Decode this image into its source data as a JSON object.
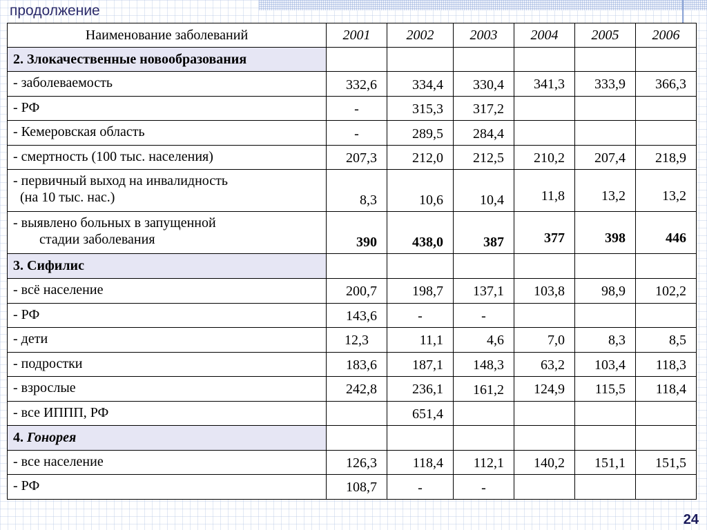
{
  "subtitle": "продолжение",
  "page_number": "24",
  "table": {
    "header": {
      "name": "Наименование заболеваний",
      "years": [
        "2001",
        "2002",
        "2003",
        "2004",
        "2005",
        "2006"
      ]
    },
    "sections": {
      "malignant": {
        "title": "2. Злокачественные новообразования",
        "rows": {
          "incidence": {
            "label": "- заболеваемость",
            "values": [
              "332,6",
              "334,4",
              "330,4",
              "341,3",
              "333,9",
              "366,3"
            ]
          },
          "rf": {
            "label": "- РФ",
            "values": [
              "-",
              "315,3",
              "317,2",
              "",
              "",
              ""
            ]
          },
          "kemerovo": {
            "label": "- Кемеровская область",
            "values": [
              "-",
              "289,5",
              "284,4",
              "",
              "",
              ""
            ]
          },
          "mortality": {
            "label": "- смертность (100 тыс. населения)",
            "values": [
              "207,3",
              "212,0",
              "212,5",
              "210,2",
              "207,4",
              "218,9"
            ]
          },
          "disability": {
            "label_line1": "- первичный выход на инвалидность",
            "label_line2": "(на 10 тыс. нас.)",
            "values": [
              "8,3",
              "10,6",
              "10,4",
              "11,8",
              "13,2",
              "13,2"
            ]
          },
          "late_stage": {
            "label_line1": "- выявлено больных в запущенной",
            "label_line2": "стадии  заболевания",
            "values": [
              "390",
              "438,0",
              "387",
              "377",
              "398",
              "446"
            ]
          }
        }
      },
      "syphilis": {
        "title": "3. Сифилис",
        "rows": {
          "population": {
            "label": "- всё население",
            "values": [
              "200,7",
              "198,7",
              "137,1",
              "103,8",
              "98,9",
              "102,2"
            ]
          },
          "rf": {
            "label": "- РФ",
            "values": [
              "143,6",
              "-",
              "-",
              "",
              "",
              ""
            ]
          },
          "children": {
            "label": "- дети",
            "values": [
              "12,3",
              "11,1",
              "4,6",
              "7,0",
              "8,3",
              "8,5"
            ]
          },
          "teens": {
            "label": "- подростки",
            "values": [
              "183,6",
              "187,1",
              "148,3",
              "63,2",
              "103,4",
              "118,3"
            ]
          },
          "adults": {
            "label": "- взрослые",
            "values": [
              "242,8",
              "236,1",
              "161,2",
              "124,9",
              "115,5",
              "118,4"
            ]
          },
          "ippp_rf": {
            "label": "- все ИППП, РФ",
            "values": [
              "",
              "651,4",
              "",
              "",
              "",
              ""
            ]
          }
        }
      },
      "gonorrhea": {
        "title_number": "4.",
        "title_name": "Гонорея",
        "rows": {
          "population": {
            "label": "- все население",
            "values": [
              "126,3",
              "118,4",
              "112,1",
              "140,2",
              "151,1",
              "151,5"
            ]
          },
          "rf": {
            "label": "- РФ",
            "values": [
              "108,7",
              "-",
              "-",
              "",
              "",
              ""
            ]
          }
        }
      }
    }
  }
}
